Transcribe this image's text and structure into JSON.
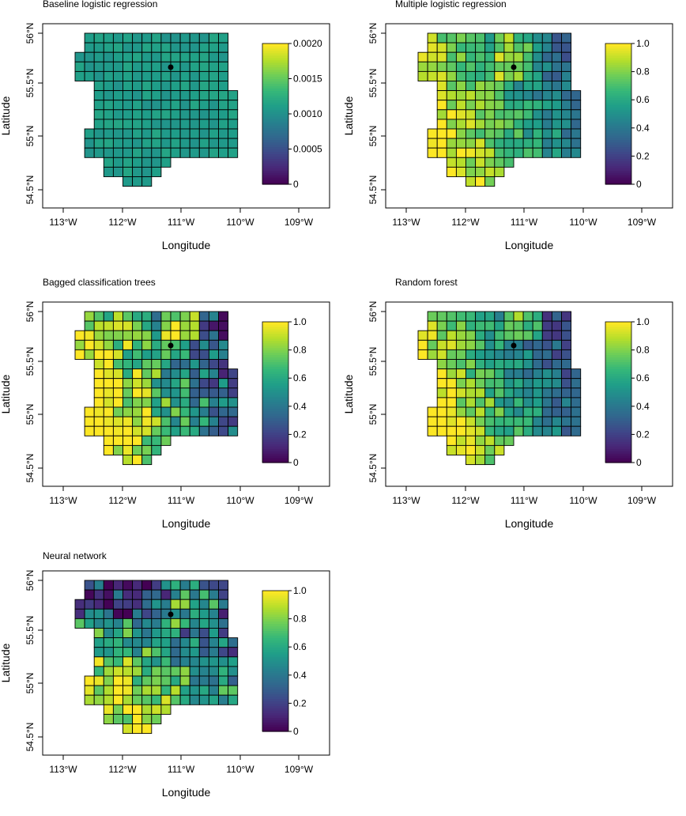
{
  "figure": {
    "xlabel": "Longitude",
    "ylabel": "Latitude",
    "x_ticks": [
      "113°W",
      "112°W",
      "111°W",
      "110°W",
      "109°W"
    ],
    "y_ticks": [
      "56°N",
      "55.5°N",
      "55°N",
      "54.5°N"
    ],
    "colors": {
      "palette": "viridis",
      "scale": [
        "#440154",
        "#3b528b",
        "#21908c",
        "#5dc863",
        "#fde725"
      ],
      "cell_border": "#000000",
      "marker": "#000000"
    }
  },
  "panels": [
    {
      "title": "Baseline logistic regression",
      "colorbar": [
        "0.0020",
        "0.0015",
        "0.0010",
        "0.0005",
        "0"
      ],
      "range": [
        0,
        0.002
      ]
    },
    {
      "title": "Multiple logistic regression",
      "colorbar": [
        "1.0",
        "0.8",
        "0.6",
        "0.4",
        "0.2",
        "0"
      ],
      "range": [
        0,
        1
      ]
    },
    {
      "title": "Bagged classification trees",
      "colorbar": [
        "1.0",
        "0.8",
        "0.6",
        "0.4",
        "0.2",
        "0"
      ],
      "range": [
        0,
        1
      ]
    },
    {
      "title": "Random forest",
      "colorbar": [
        "1.0",
        "0.8",
        "0.6",
        "0.4",
        "0.2",
        "0"
      ],
      "range": [
        0,
        1
      ]
    },
    {
      "title": "Neural network",
      "colorbar": [
        "1.0",
        "0.8",
        "0.6",
        "0.4",
        "0.2",
        "0"
      ],
      "range": [
        0,
        1
      ]
    }
  ]
}
